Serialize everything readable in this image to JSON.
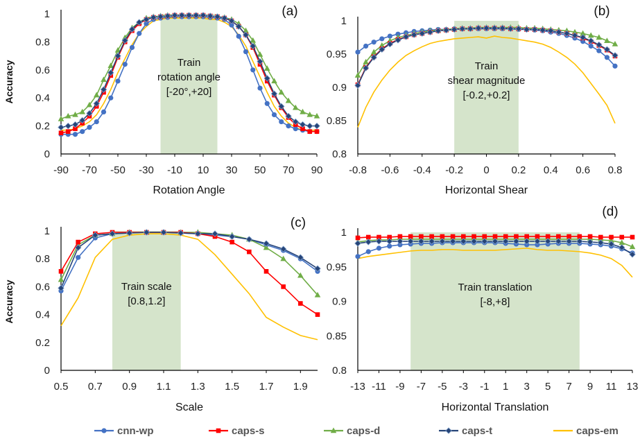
{
  "legend": [
    {
      "name": "cnn-wp",
      "color": "#4472C4",
      "marker": "circle"
    },
    {
      "name": "caps-s",
      "color": "#FF0000",
      "marker": "square"
    },
    {
      "name": "caps-d",
      "color": "#70AD47",
      "marker": "triangle"
    },
    {
      "name": "caps-t",
      "color": "#264478",
      "marker": "diamond"
    },
    {
      "name": "caps-em",
      "color": "#FFC000",
      "marker": "none"
    }
  ],
  "chart_data": [
    {
      "type": "line",
      "tag": "(a)",
      "xlabel": "Rotation Angle",
      "ylabel": "Accuracy",
      "xlim": [
        -90,
        90
      ],
      "ylim": [
        0,
        1
      ],
      "xticks": [
        -90,
        -70,
        -50,
        -30,
        -10,
        10,
        30,
        50,
        70,
        90
      ],
      "xtick_labels": [
        "-90",
        "-70",
        "-50",
        "-30",
        "-10",
        "10",
        "30",
        "50",
        "70",
        "90"
      ],
      "yticks": [
        0,
        0.2,
        0.4,
        0.6,
        0.8,
        1
      ],
      "ytick_labels": [
        "0",
        "0.2",
        "0.4",
        "0.6",
        "0.8",
        "1"
      ],
      "band": [
        -20,
        20
      ],
      "band_text": [
        "Train",
        "rotation angle",
        "[-20°,+20]"
      ],
      "x": [
        -90,
        -85,
        -80,
        -75,
        -70,
        -65,
        -60,
        -55,
        -50,
        -45,
        -40,
        -35,
        -30,
        -25,
        -20,
        -15,
        -10,
        -5,
        0,
        5,
        10,
        15,
        20,
        25,
        30,
        35,
        40,
        45,
        50,
        55,
        60,
        65,
        70,
        75,
        80,
        85,
        90
      ],
      "series": [
        {
          "name": "cnn-wp",
          "values": [
            0.14,
            0.14,
            0.14,
            0.16,
            0.19,
            0.23,
            0.3,
            0.4,
            0.52,
            0.64,
            0.76,
            0.86,
            0.93,
            0.96,
            0.97,
            0.975,
            0.98,
            0.98,
            0.98,
            0.98,
            0.98,
            0.975,
            0.97,
            0.96,
            0.92,
            0.84,
            0.73,
            0.6,
            0.47,
            0.36,
            0.28,
            0.23,
            0.2,
            0.18,
            0.17,
            0.16,
            0.16
          ]
        },
        {
          "name": "caps-s",
          "values": [
            0.15,
            0.16,
            0.18,
            0.22,
            0.27,
            0.34,
            0.44,
            0.56,
            0.69,
            0.8,
            0.88,
            0.93,
            0.96,
            0.975,
            0.98,
            0.985,
            0.99,
            0.99,
            0.99,
            0.99,
            0.99,
            0.985,
            0.98,
            0.97,
            0.95,
            0.91,
            0.85,
            0.76,
            0.64,
            0.52,
            0.42,
            0.33,
            0.26,
            0.21,
            0.18,
            0.16,
            0.16
          ]
        },
        {
          "name": "caps-d",
          "values": [
            0.25,
            0.27,
            0.28,
            0.3,
            0.35,
            0.42,
            0.53,
            0.63,
            0.74,
            0.83,
            0.9,
            0.94,
            0.97,
            0.98,
            0.985,
            0.99,
            0.99,
            0.99,
            0.99,
            0.99,
            0.99,
            0.985,
            0.98,
            0.975,
            0.96,
            0.93,
            0.88,
            0.81,
            0.71,
            0.61,
            0.52,
            0.44,
            0.38,
            0.33,
            0.3,
            0.28,
            0.27
          ]
        },
        {
          "name": "caps-t",
          "values": [
            0.19,
            0.2,
            0.21,
            0.24,
            0.29,
            0.36,
            0.46,
            0.58,
            0.7,
            0.81,
            0.89,
            0.94,
            0.96,
            0.975,
            0.98,
            0.985,
            0.99,
            0.99,
            0.99,
            0.99,
            0.99,
            0.985,
            0.98,
            0.97,
            0.95,
            0.91,
            0.85,
            0.77,
            0.66,
            0.54,
            0.43,
            0.34,
            0.27,
            0.23,
            0.21,
            0.2,
            0.2
          ]
        },
        {
          "name": "caps-em",
          "values": [
            0.17,
            0.17,
            0.18,
            0.2,
            0.23,
            0.28,
            0.36,
            0.46,
            0.58,
            0.68,
            0.78,
            0.86,
            0.91,
            0.95,
            0.96,
            0.97,
            0.97,
            0.97,
            0.97,
            0.97,
            0.97,
            0.96,
            0.96,
            0.94,
            0.91,
            0.85,
            0.77,
            0.66,
            0.55,
            0.44,
            0.34,
            0.27,
            0.22,
            0.19,
            0.17,
            0.17,
            0.17
          ]
        }
      ]
    },
    {
      "type": "line",
      "tag": "(b)",
      "xlabel": "Horizontal Shear",
      "ylabel": "",
      "xlim": [
        -0.8,
        0.8
      ],
      "ylim": [
        0.8,
        1
      ],
      "xticks": [
        -0.8,
        -0.6,
        -0.4,
        -0.2,
        0,
        0.2,
        0.4,
        0.6,
        0.8
      ],
      "xtick_labels": [
        "-0.8",
        "-0.6",
        "-0.4",
        "-0.2",
        "0",
        "0.2",
        "0.4",
        "0.6",
        "0.8"
      ],
      "yticks": [
        0.8,
        0.85,
        0.9,
        0.95,
        1
      ],
      "ytick_labels": [
        "0.8",
        "0.85",
        "0.9",
        "0.95",
        "1"
      ],
      "band": [
        -0.2,
        0.2
      ],
      "band_text": [
        "Train",
        "shear magnitude",
        "[-0.2,+0.2]"
      ],
      "x": [
        -0.8,
        -0.75,
        -0.7,
        -0.65,
        -0.6,
        -0.55,
        -0.5,
        -0.45,
        -0.4,
        -0.35,
        -0.3,
        -0.25,
        -0.2,
        -0.15,
        -0.1,
        -0.05,
        0,
        0.05,
        0.1,
        0.15,
        0.2,
        0.25,
        0.3,
        0.35,
        0.4,
        0.45,
        0.5,
        0.55,
        0.6,
        0.65,
        0.7,
        0.75,
        0.8
      ],
      "series": [
        {
          "name": "cnn-wp",
          "values": [
            0.953,
            0.962,
            0.968,
            0.973,
            0.977,
            0.98,
            0.982,
            0.984,
            0.985,
            0.986,
            0.987,
            0.987,
            0.988,
            0.988,
            0.988,
            0.988,
            0.988,
            0.988,
            0.988,
            0.988,
            0.987,
            0.987,
            0.986,
            0.985,
            0.983,
            0.981,
            0.978,
            0.974,
            0.969,
            0.962,
            0.955,
            0.945,
            0.932
          ]
        },
        {
          "name": "caps-s",
          "values": [
            0.904,
            0.93,
            0.946,
            0.958,
            0.966,
            0.972,
            0.976,
            0.979,
            0.981,
            0.983,
            0.985,
            0.986,
            0.987,
            0.988,
            0.988,
            0.989,
            0.989,
            0.989,
            0.989,
            0.988,
            0.988,
            0.987,
            0.987,
            0.986,
            0.985,
            0.983,
            0.981,
            0.978,
            0.974,
            0.969,
            0.963,
            0.956,
            0.947
          ]
        },
        {
          "name": "caps-d",
          "values": [
            0.918,
            0.938,
            0.953,
            0.963,
            0.97,
            0.975,
            0.978,
            0.981,
            0.983,
            0.985,
            0.986,
            0.987,
            0.988,
            0.989,
            0.989,
            0.99,
            0.99,
            0.99,
            0.99,
            0.99,
            0.99,
            0.989,
            0.989,
            0.988,
            0.987,
            0.986,
            0.985,
            0.983,
            0.981,
            0.978,
            0.975,
            0.97,
            0.965
          ]
        },
        {
          "name": "caps-t",
          "values": [
            0.903,
            0.929,
            0.945,
            0.957,
            0.965,
            0.971,
            0.976,
            0.979,
            0.981,
            0.983,
            0.985,
            0.986,
            0.987,
            0.988,
            0.988,
            0.989,
            0.989,
            0.989,
            0.989,
            0.988,
            0.988,
            0.987,
            0.987,
            0.986,
            0.985,
            0.983,
            0.981,
            0.978,
            0.975,
            0.97,
            0.964,
            0.957,
            0.948
          ]
        },
        {
          "name": "caps-em",
          "values": [
            0.84,
            0.87,
            0.893,
            0.911,
            0.926,
            0.938,
            0.948,
            0.955,
            0.961,
            0.966,
            0.969,
            0.971,
            0.973,
            0.974,
            0.975,
            0.976,
            0.974,
            0.977,
            0.975,
            0.974,
            0.972,
            0.97,
            0.968,
            0.965,
            0.96,
            0.953,
            0.945,
            0.935,
            0.922,
            0.906,
            0.89,
            0.873,
            0.846
          ]
        }
      ]
    },
    {
      "type": "line",
      "tag": "(c)",
      "xlabel": "Scale",
      "ylabel": "Accuracy",
      "xlim": [
        0.5,
        2.0
      ],
      "ylim": [
        0,
        1
      ],
      "xticks": [
        0.5,
        0.7,
        0.9,
        1.1,
        1.3,
        1.5,
        1.7,
        1.9
      ],
      "xtick_labels": [
        "0.5",
        "0.7",
        "0.9",
        "1.1",
        "1.3",
        "1.5",
        "1.7",
        "1.9"
      ],
      "yticks": [
        0,
        0.2,
        0.4,
        0.6,
        0.8,
        1
      ],
      "ytick_labels": [
        "0",
        "0.2",
        "0.4",
        "0.6",
        "0.8",
        "1"
      ],
      "band": [
        0.8,
        1.2
      ],
      "band_text": [
        "Train scale",
        "[0.8,1.2]"
      ],
      "x": [
        0.5,
        0.6,
        0.7,
        0.8,
        0.9,
        1.0,
        1.1,
        1.2,
        1.3,
        1.4,
        1.5,
        1.6,
        1.7,
        1.8,
        1.9,
        2.0
      ],
      "series": [
        {
          "name": "cnn-wp",
          "values": [
            0.57,
            0.81,
            0.95,
            0.98,
            0.985,
            0.99,
            0.99,
            0.985,
            0.98,
            0.97,
            0.96,
            0.94,
            0.9,
            0.86,
            0.8,
            0.71
          ]
        },
        {
          "name": "caps-s",
          "values": [
            0.71,
            0.92,
            0.98,
            0.99,
            0.99,
            0.99,
            0.99,
            0.99,
            0.98,
            0.96,
            0.92,
            0.85,
            0.71,
            0.6,
            0.48,
            0.4
          ]
        },
        {
          "name": "caps-d",
          "values": [
            0.65,
            0.9,
            0.97,
            0.98,
            0.99,
            0.99,
            0.99,
            0.99,
            0.99,
            0.98,
            0.97,
            0.94,
            0.88,
            0.8,
            0.68,
            0.54
          ]
        },
        {
          "name": "caps-t",
          "values": [
            0.59,
            0.88,
            0.97,
            0.98,
            0.985,
            0.99,
            0.99,
            0.985,
            0.98,
            0.98,
            0.96,
            0.94,
            0.91,
            0.87,
            0.81,
            0.73
          ]
        },
        {
          "name": "caps-em",
          "values": [
            0.32,
            0.52,
            0.81,
            0.94,
            0.97,
            0.98,
            0.98,
            0.97,
            0.94,
            0.83,
            0.69,
            0.55,
            0.38,
            0.31,
            0.25,
            0.22
          ]
        }
      ]
    },
    {
      "type": "line",
      "tag": "(d)",
      "xlabel": "Horizontal Translation",
      "ylabel": "",
      "xlim": [
        -13,
        13
      ],
      "ylim": [
        0.8,
        1
      ],
      "xticks": [
        -13,
        -11,
        -9,
        -7,
        -5,
        -3,
        -1,
        1,
        3,
        5,
        7,
        9,
        11,
        13
      ],
      "xtick_labels": [
        "-13",
        "-11",
        "-9",
        "-7",
        "-5",
        "-3",
        "-1",
        "1",
        "3",
        "5",
        "7",
        "9",
        "11",
        "13"
      ],
      "yticks": [
        0.8,
        0.85,
        0.9,
        0.95,
        1
      ],
      "ytick_labels": [
        "0.8",
        "0.85",
        "0.9",
        "0.95",
        "1"
      ],
      "band": [
        -8,
        8
      ],
      "band_text": [
        "Train translation",
        "[-8,+8]"
      ],
      "x": [
        -13,
        -12,
        -11,
        -10,
        -9,
        -8,
        -7,
        -6,
        -5,
        -4,
        -3,
        -2,
        -1,
        0,
        1,
        2,
        3,
        4,
        5,
        6,
        7,
        8,
        9,
        10,
        11,
        12,
        13
      ],
      "series": [
        {
          "name": "cnn-wp",
          "values": [
            0.965,
            0.972,
            0.977,
            0.98,
            0.982,
            0.983,
            0.984,
            0.984,
            0.985,
            0.985,
            0.985,
            0.985,
            0.985,
            0.985,
            0.984,
            0.983,
            0.982,
            0.982,
            0.983,
            0.984,
            0.984,
            0.984,
            0.983,
            0.982,
            0.98,
            0.976,
            0.97
          ]
        },
        {
          "name": "caps-s",
          "values": [
            0.992,
            0.993,
            0.993,
            0.993,
            0.994,
            0.994,
            0.994,
            0.994,
            0.994,
            0.994,
            0.994,
            0.994,
            0.994,
            0.994,
            0.994,
            0.994,
            0.994,
            0.994,
            0.994,
            0.994,
            0.994,
            0.994,
            0.994,
            0.993,
            0.993,
            0.993,
            0.993
          ]
        },
        {
          "name": "caps-d",
          "values": [
            0.986,
            0.988,
            0.989,
            0.989,
            0.99,
            0.99,
            0.99,
            0.99,
            0.99,
            0.99,
            0.99,
            0.99,
            0.99,
            0.99,
            0.99,
            0.99,
            0.99,
            0.99,
            0.99,
            0.99,
            0.99,
            0.99,
            0.99,
            0.989,
            0.988,
            0.985,
            0.979
          ]
        },
        {
          "name": "caps-t",
          "values": [
            0.984,
            0.986,
            0.987,
            0.987,
            0.987,
            0.987,
            0.987,
            0.987,
            0.987,
            0.987,
            0.987,
            0.987,
            0.987,
            0.987,
            0.987,
            0.987,
            0.987,
            0.987,
            0.987,
            0.987,
            0.987,
            0.987,
            0.986,
            0.985,
            0.983,
            0.978,
            0.968
          ]
        },
        {
          "name": "caps-em",
          "values": [
            0.962,
            0.965,
            0.967,
            0.969,
            0.971,
            0.973,
            0.974,
            0.974,
            0.975,
            0.975,
            0.974,
            0.974,
            0.974,
            0.974,
            0.975,
            0.976,
            0.977,
            0.975,
            0.974,
            0.974,
            0.973,
            0.972,
            0.97,
            0.967,
            0.962,
            0.952,
            0.935
          ]
        }
      ]
    }
  ]
}
